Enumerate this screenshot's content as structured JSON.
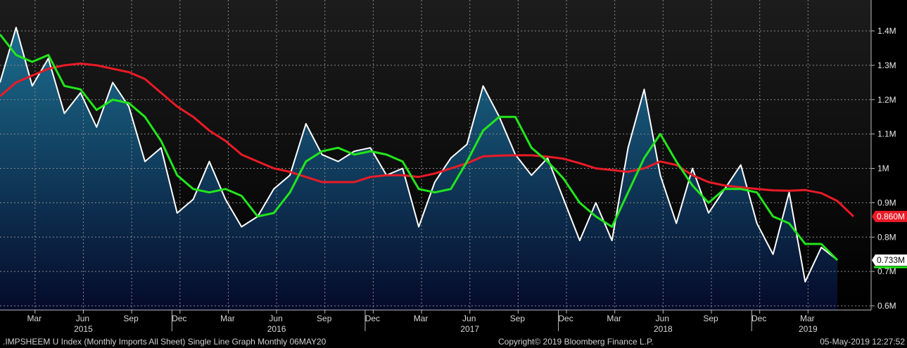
{
  "chart_data": {
    "type": "line",
    "ylim": [
      0.59,
      1.5
    ],
    "y_ticks": [
      {
        "v": 1.4,
        "label": "1.4M"
      },
      {
        "v": 1.3,
        "label": "1.3M"
      },
      {
        "v": 1.2,
        "label": "1.2M"
      },
      {
        "v": 1.1,
        "label": "1.1M"
      },
      {
        "v": 1.0,
        "label": "1M"
      },
      {
        "v": 0.9,
        "label": "0.9M"
      },
      {
        "v": 0.8,
        "label": "0.8M"
      },
      {
        "v": 0.7,
        "label": "0.7M"
      },
      {
        "v": 0.6,
        "label": "0.6M"
      }
    ],
    "x_month_labels": [
      "Mar",
      "Jun",
      "Sep",
      "Dec",
      "Mar",
      "Jun",
      "Sep",
      "Dec",
      "Mar",
      "Jun",
      "Sep",
      "Dec",
      "Mar",
      "Jun",
      "Sep",
      "Dec",
      "Mar"
    ],
    "x_month_index": [
      2,
      5,
      8,
      11,
      14,
      17,
      20,
      23,
      26,
      29,
      32,
      35,
      38,
      41,
      44,
      47,
      50
    ],
    "x_year_labels": [
      "2015",
      "2016",
      "2017",
      "2018",
      "2019"
    ],
    "x_year_index": [
      5,
      17,
      29,
      41,
      50
    ],
    "grid": true,
    "series": [
      {
        "color": "#ffffff",
        "fill": true,
        "values": [
          1.25,
          1.41,
          1.24,
          1.32,
          1.16,
          1.22,
          1.12,
          1.25,
          1.18,
          1.02,
          1.06,
          0.87,
          0.91,
          1.02,
          0.91,
          0.83,
          0.86,
          0.94,
          0.98,
          1.13,
          1.04,
          1.02,
          1.05,
          1.06,
          0.98,
          1.0,
          0.83,
          0.96,
          1.03,
          1.07,
          1.24,
          1.15,
          1.04,
          0.98,
          1.03,
          0.91,
          0.79,
          0.9,
          0.79,
          1.06,
          1.23,
          0.98,
          0.84,
          1.0,
          0.87,
          0.94,
          1.01,
          0.84,
          0.75,
          0.93,
          0.67,
          0.77,
          0.733
        ],
        "last_label": "0.733M"
      },
      {
        "color": "#22e61c",
        "values": [
          1.39,
          1.33,
          1.31,
          1.33,
          1.24,
          1.23,
          1.17,
          1.2,
          1.19,
          1.15,
          1.08,
          0.98,
          0.94,
          0.93,
          0.94,
          0.92,
          0.86,
          0.87,
          0.93,
          1.02,
          1.05,
          1.06,
          1.04,
          1.05,
          1.04,
          1.02,
          0.94,
          0.93,
          0.94,
          1.02,
          1.11,
          1.15,
          1.15,
          1.06,
          1.02,
          0.97,
          0.9,
          0.86,
          0.83,
          0.93,
          1.03,
          1.1,
          1.02,
          0.95,
          0.9,
          0.94,
          0.94,
          0.93,
          0.86,
          0.84,
          0.78,
          0.78,
          0.733
        ],
        "last_label": "0.733M"
      },
      {
        "color": "#ea1b26",
        "values": [
          1.21,
          1.25,
          1.27,
          1.29,
          1.3,
          1.305,
          1.3,
          1.29,
          1.28,
          1.26,
          1.22,
          1.18,
          1.15,
          1.11,
          1.08,
          1.04,
          1.02,
          1.0,
          0.99,
          0.975,
          0.96,
          0.96,
          0.96,
          0.975,
          0.98,
          0.98,
          0.975,
          0.985,
          1.0,
          1.015,
          1.035,
          1.037,
          1.038,
          1.038,
          1.034,
          1.028,
          1.015,
          1.0,
          0.995,
          0.99,
          1.0,
          1.02,
          1.01,
          0.98,
          0.96,
          0.95,
          0.945,
          0.94,
          0.936,
          0.935,
          0.937,
          0.928,
          0.905,
          0.86
        ],
        "last_label": "0.860M"
      }
    ]
  },
  "footer": {
    "left": ".IMPSHEEM U Index (Monthly Imports All Sheet) Single Line Graph  Monthly 06MAY20",
    "center": "Copyright© 2019 Bloomberg Finance L.P.",
    "right": "05-May-2019 12:27:52"
  },
  "colors": {
    "background": "#000000",
    "area_top": "#1c6e8f",
    "area_bottom": "#050a2a",
    "grid": "#8a8a8a"
  }
}
